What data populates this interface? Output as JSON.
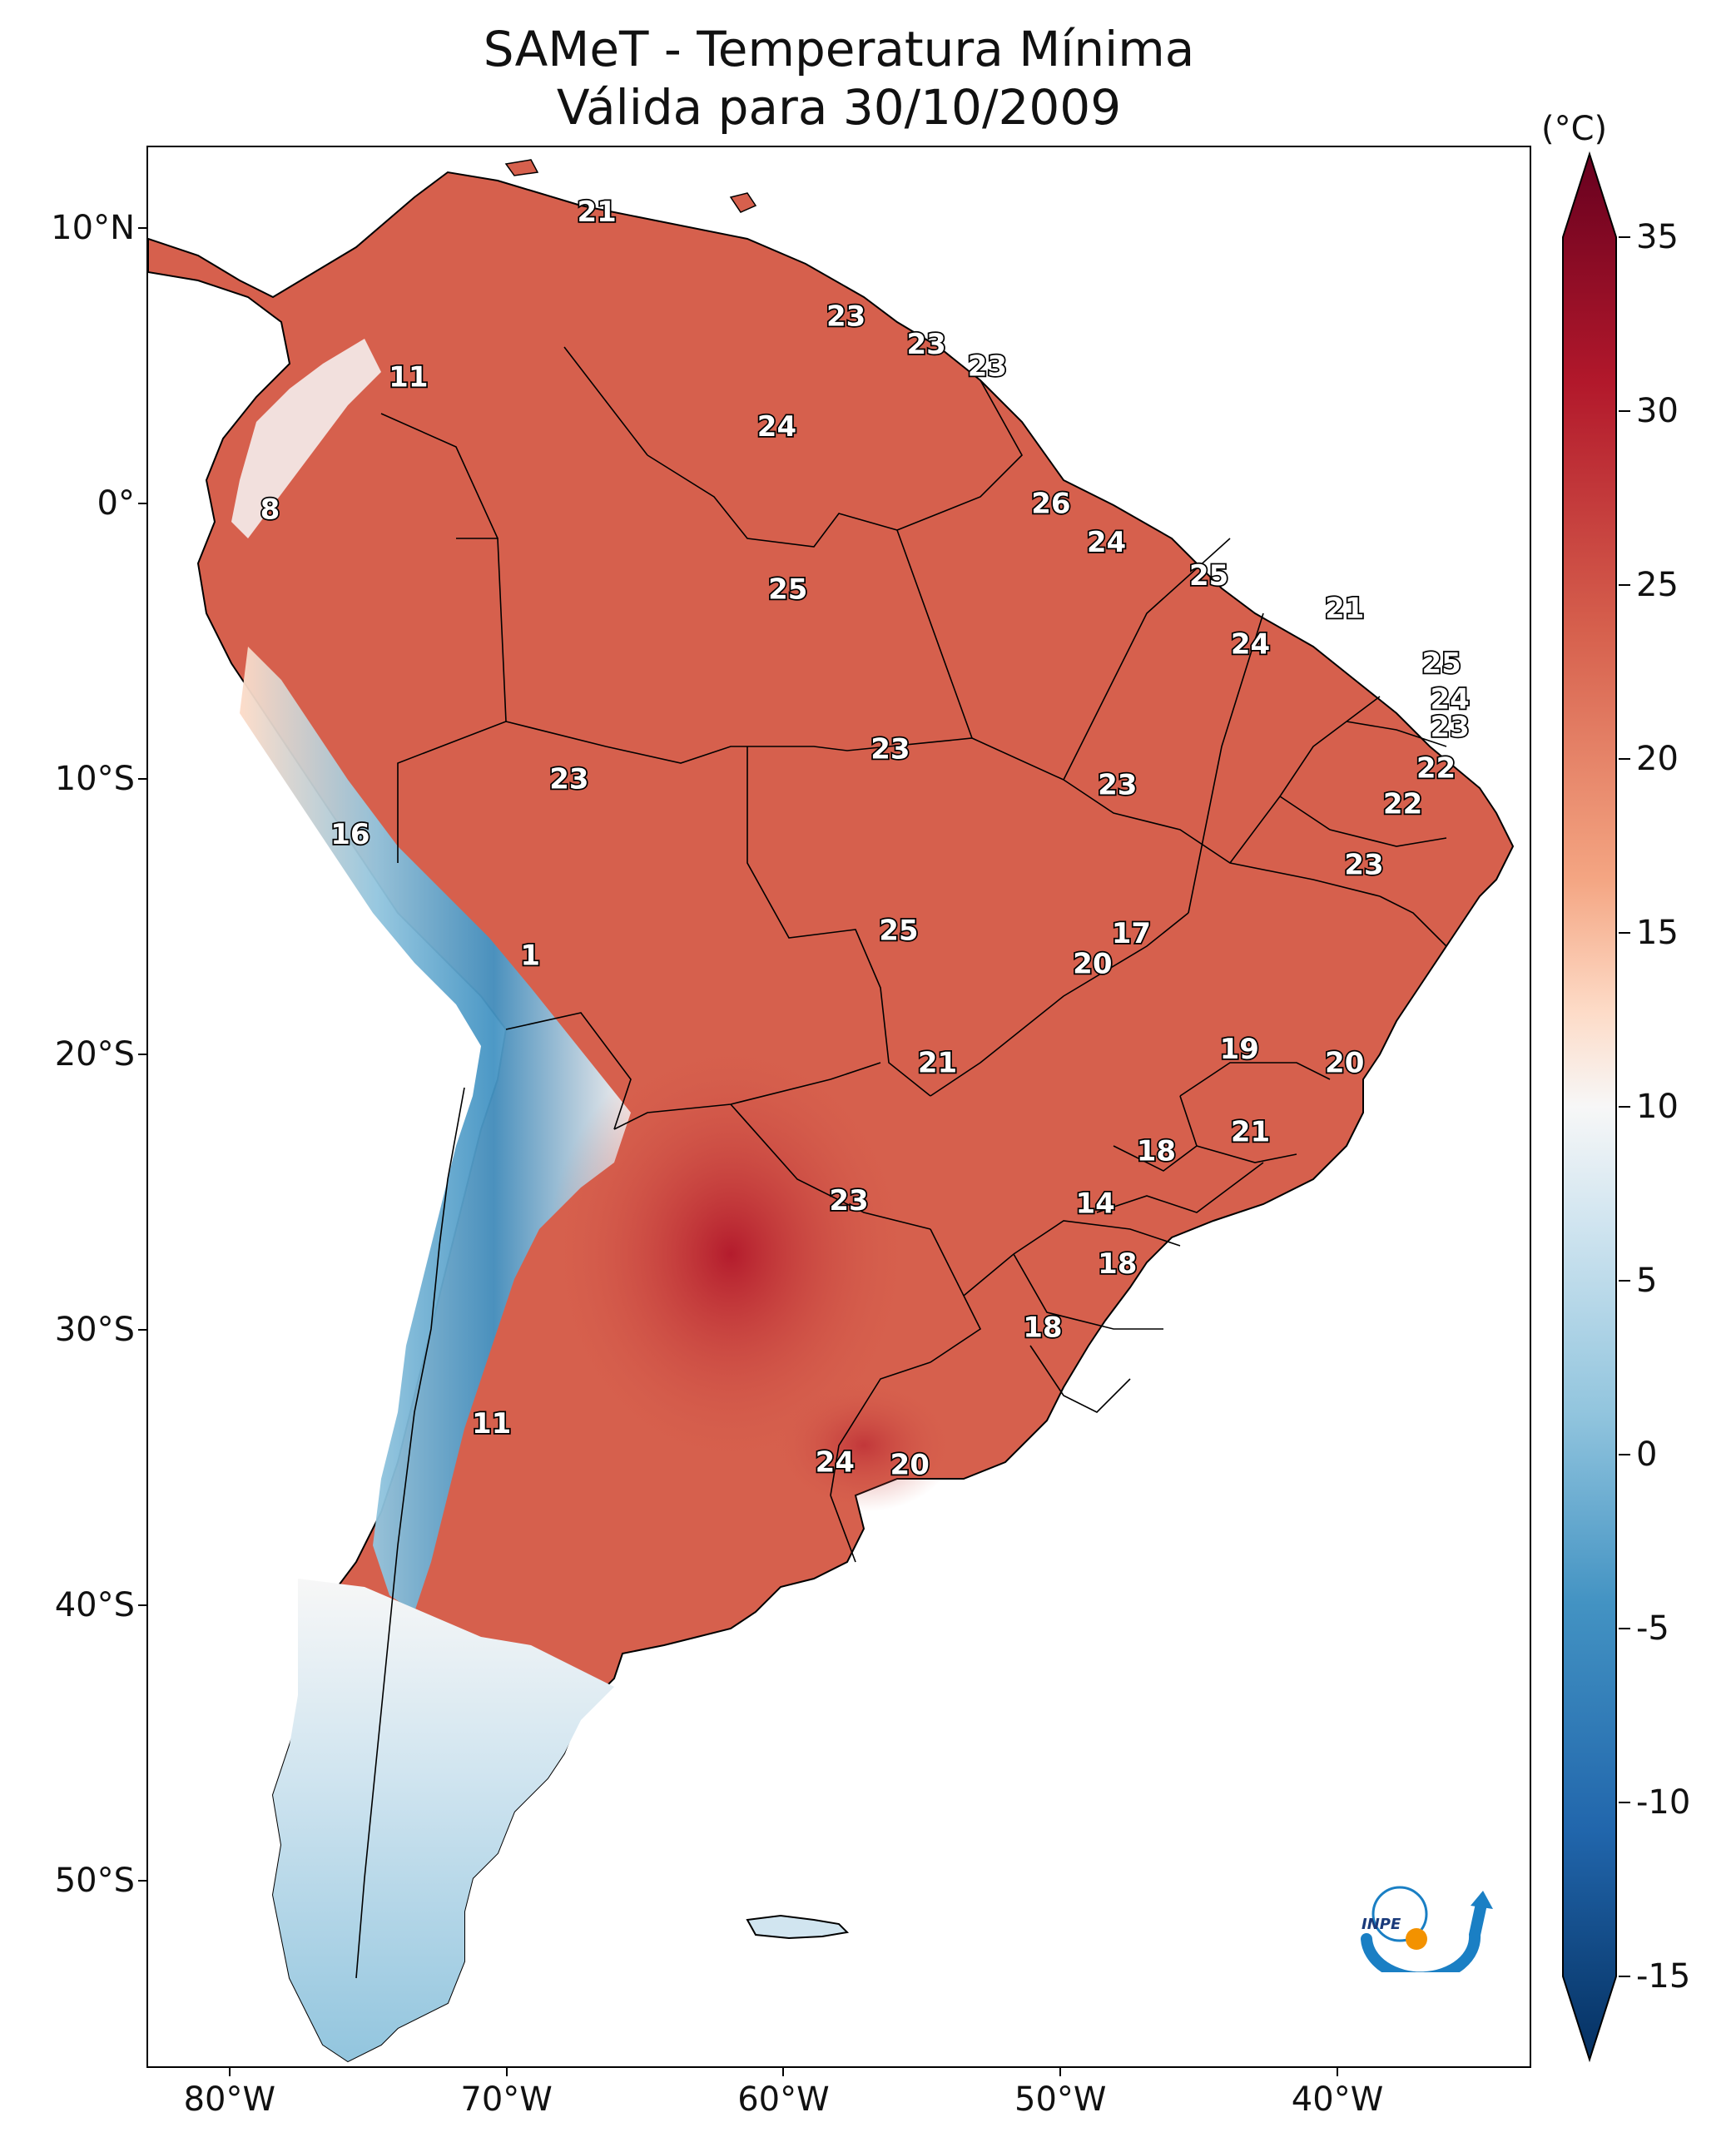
{
  "title": {
    "line1": "SAMeT - Temperatura Mínima",
    "line2": "Válida para 30/10/2009"
  },
  "map": {
    "lon_range": [
      -83,
      -33
    ],
    "lat_range": [
      -56.8,
      13
    ],
    "lon_ticks": [
      {
        "value": -80,
        "label": "80°W"
      },
      {
        "value": -70,
        "label": "70°W"
      },
      {
        "value": -60,
        "label": "60°W"
      },
      {
        "value": -50,
        "label": "50°W"
      },
      {
        "value": -40,
        "label": "40°W"
      }
    ],
    "lat_ticks": [
      {
        "value": 10,
        "label": "10°N"
      },
      {
        "value": 0,
        "label": "0°"
      },
      {
        "value": -10,
        "label": "10°S"
      },
      {
        "value": -20,
        "label": "20°S"
      },
      {
        "value": -30,
        "label": "30°S"
      },
      {
        "value": -40,
        "label": "40°S"
      },
      {
        "value": -50,
        "label": "50°S"
      }
    ],
    "station_values": [
      {
        "lon": -66.8,
        "lat": 10.6,
        "value": 21
      },
      {
        "lon": -57.8,
        "lat": 6.8,
        "value": 23
      },
      {
        "lon": -54.9,
        "lat": 5.8,
        "value": 23
      },
      {
        "lon": -52.7,
        "lat": 5.0,
        "value": 23
      },
      {
        "lon": -73.6,
        "lat": 4.6,
        "value": 11
      },
      {
        "lon": -60.3,
        "lat": 2.8,
        "value": 24
      },
      {
        "lon": -78.6,
        "lat": -0.2,
        "value": 8
      },
      {
        "lon": -50.4,
        "lat": 0.0,
        "value": 26
      },
      {
        "lon": -48.4,
        "lat": -1.4,
        "value": 24
      },
      {
        "lon": -44.7,
        "lat": -2.6,
        "value": 25
      },
      {
        "lon": -59.9,
        "lat": -3.1,
        "value": 25
      },
      {
        "lon": -39.8,
        "lat": -3.8,
        "value": 21
      },
      {
        "lon": -43.2,
        "lat": -5.1,
        "value": 24
      },
      {
        "lon": -36.3,
        "lat": -5.8,
        "value": 25
      },
      {
        "lon": -36.0,
        "lat": -7.1,
        "value": 24
      },
      {
        "lon": -36.0,
        "lat": -8.1,
        "value": 23
      },
      {
        "lon": -56.2,
        "lat": -8.9,
        "value": 23
      },
      {
        "lon": -36.5,
        "lat": -9.6,
        "value": 22
      },
      {
        "lon": -67.8,
        "lat": -10.0,
        "value": 23
      },
      {
        "lon": -48.0,
        "lat": -10.2,
        "value": 23
      },
      {
        "lon": -37.7,
        "lat": -10.9,
        "value": 22
      },
      {
        "lon": -75.7,
        "lat": -12.0,
        "value": 16
      },
      {
        "lon": -39.1,
        "lat": -13.1,
        "value": 23
      },
      {
        "lon": -55.9,
        "lat": -15.5,
        "value": 25
      },
      {
        "lon": -47.5,
        "lat": -15.6,
        "value": 17
      },
      {
        "lon": -69.2,
        "lat": -16.4,
        "value": 1
      },
      {
        "lon": -48.9,
        "lat": -16.7,
        "value": 20
      },
      {
        "lon": -43.6,
        "lat": -19.8,
        "value": 19
      },
      {
        "lon": -54.5,
        "lat": -20.3,
        "value": 21
      },
      {
        "lon": -39.8,
        "lat": -20.3,
        "value": 20
      },
      {
        "lon": -43.2,
        "lat": -22.8,
        "value": 21
      },
      {
        "lon": -46.6,
        "lat": -23.5,
        "value": 18
      },
      {
        "lon": -57.7,
        "lat": -25.3,
        "value": 23
      },
      {
        "lon": -48.8,
        "lat": -25.4,
        "value": 14
      },
      {
        "lon": -48.0,
        "lat": -27.6,
        "value": 18
      },
      {
        "lon": -50.7,
        "lat": -29.9,
        "value": 18
      },
      {
        "lon": -70.6,
        "lat": -33.4,
        "value": 11
      },
      {
        "lon": -58.2,
        "lat": -34.8,
        "value": 24
      },
      {
        "lon": -55.5,
        "lat": -34.9,
        "value": 20
      }
    ]
  },
  "colorbar": {
    "unit": "(°C)",
    "min": -17,
    "max": 37,
    "ticks": [
      {
        "value": 35,
        "label": "35"
      },
      {
        "value": 30,
        "label": "30"
      },
      {
        "value": 25,
        "label": "25"
      },
      {
        "value": 20,
        "label": "20"
      },
      {
        "value": 15,
        "label": "15"
      },
      {
        "value": 10,
        "label": "10"
      },
      {
        "value": 5,
        "label": "5"
      },
      {
        "value": 0,
        "label": "0"
      },
      {
        "value": -5,
        "label": "-5"
      },
      {
        "value": -10,
        "label": "-10"
      },
      {
        "value": -15,
        "label": "-15"
      }
    ],
    "colors": [
      "#053061",
      "#2166ac",
      "#4393c3",
      "#92c5de",
      "#d1e5f0",
      "#f7f7f7",
      "#fddbc7",
      "#f4a582",
      "#d6604d",
      "#b2182b",
      "#67001f"
    ]
  },
  "logo": {
    "text": "INPE",
    "colors": {
      "arc": "#1a7fc4",
      "dot": "#f39200"
    }
  }
}
